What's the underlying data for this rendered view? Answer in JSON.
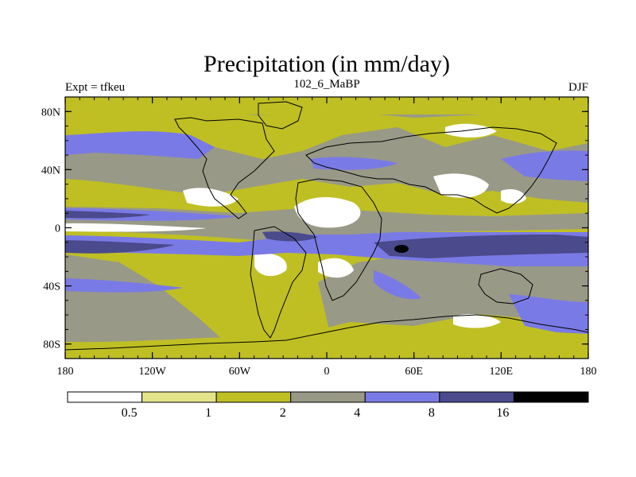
{
  "title": "Precipitation (in mm/day)",
  "left_label": "Expt = tfkeu",
  "center_label": "102_6_MaBP",
  "right_label": "DJF",
  "lon_ticks": [
    {
      "value": -180,
      "label": "180"
    },
    {
      "value": -120,
      "label": "120W"
    },
    {
      "value": -60,
      "label": "60W"
    },
    {
      "value": 0,
      "label": "0"
    },
    {
      "value": 60,
      "label": "60E"
    },
    {
      "value": 120,
      "label": "120E"
    },
    {
      "value": 180,
      "label": "180"
    }
  ],
  "lat_ticks": [
    {
      "value": 80,
      "label": "80N"
    },
    {
      "value": 40,
      "label": "40N"
    },
    {
      "value": 0,
      "label": "0"
    },
    {
      "value": -40,
      "label": "40S"
    },
    {
      "value": -80,
      "label": "80S"
    }
  ],
  "legend": {
    "colors": [
      "#ffffff",
      "#e3e38a",
      "#bfbf24",
      "#999987",
      "#7a7ae6",
      "#4a4a8c",
      "#000000"
    ],
    "labels": [
      "0.5",
      "1",
      "2",
      "4",
      "8",
      "16"
    ]
  },
  "colors": {
    "lt_0_5": "#ffffff",
    "0_5_to_1": "#e3e38a",
    "1_to_2": "#bfbf24",
    "2_to_4": "#999987",
    "4_to_8": "#7a7ae6",
    "8_to_16": "#4a4a8c",
    "gt_16": "#000000"
  }
}
